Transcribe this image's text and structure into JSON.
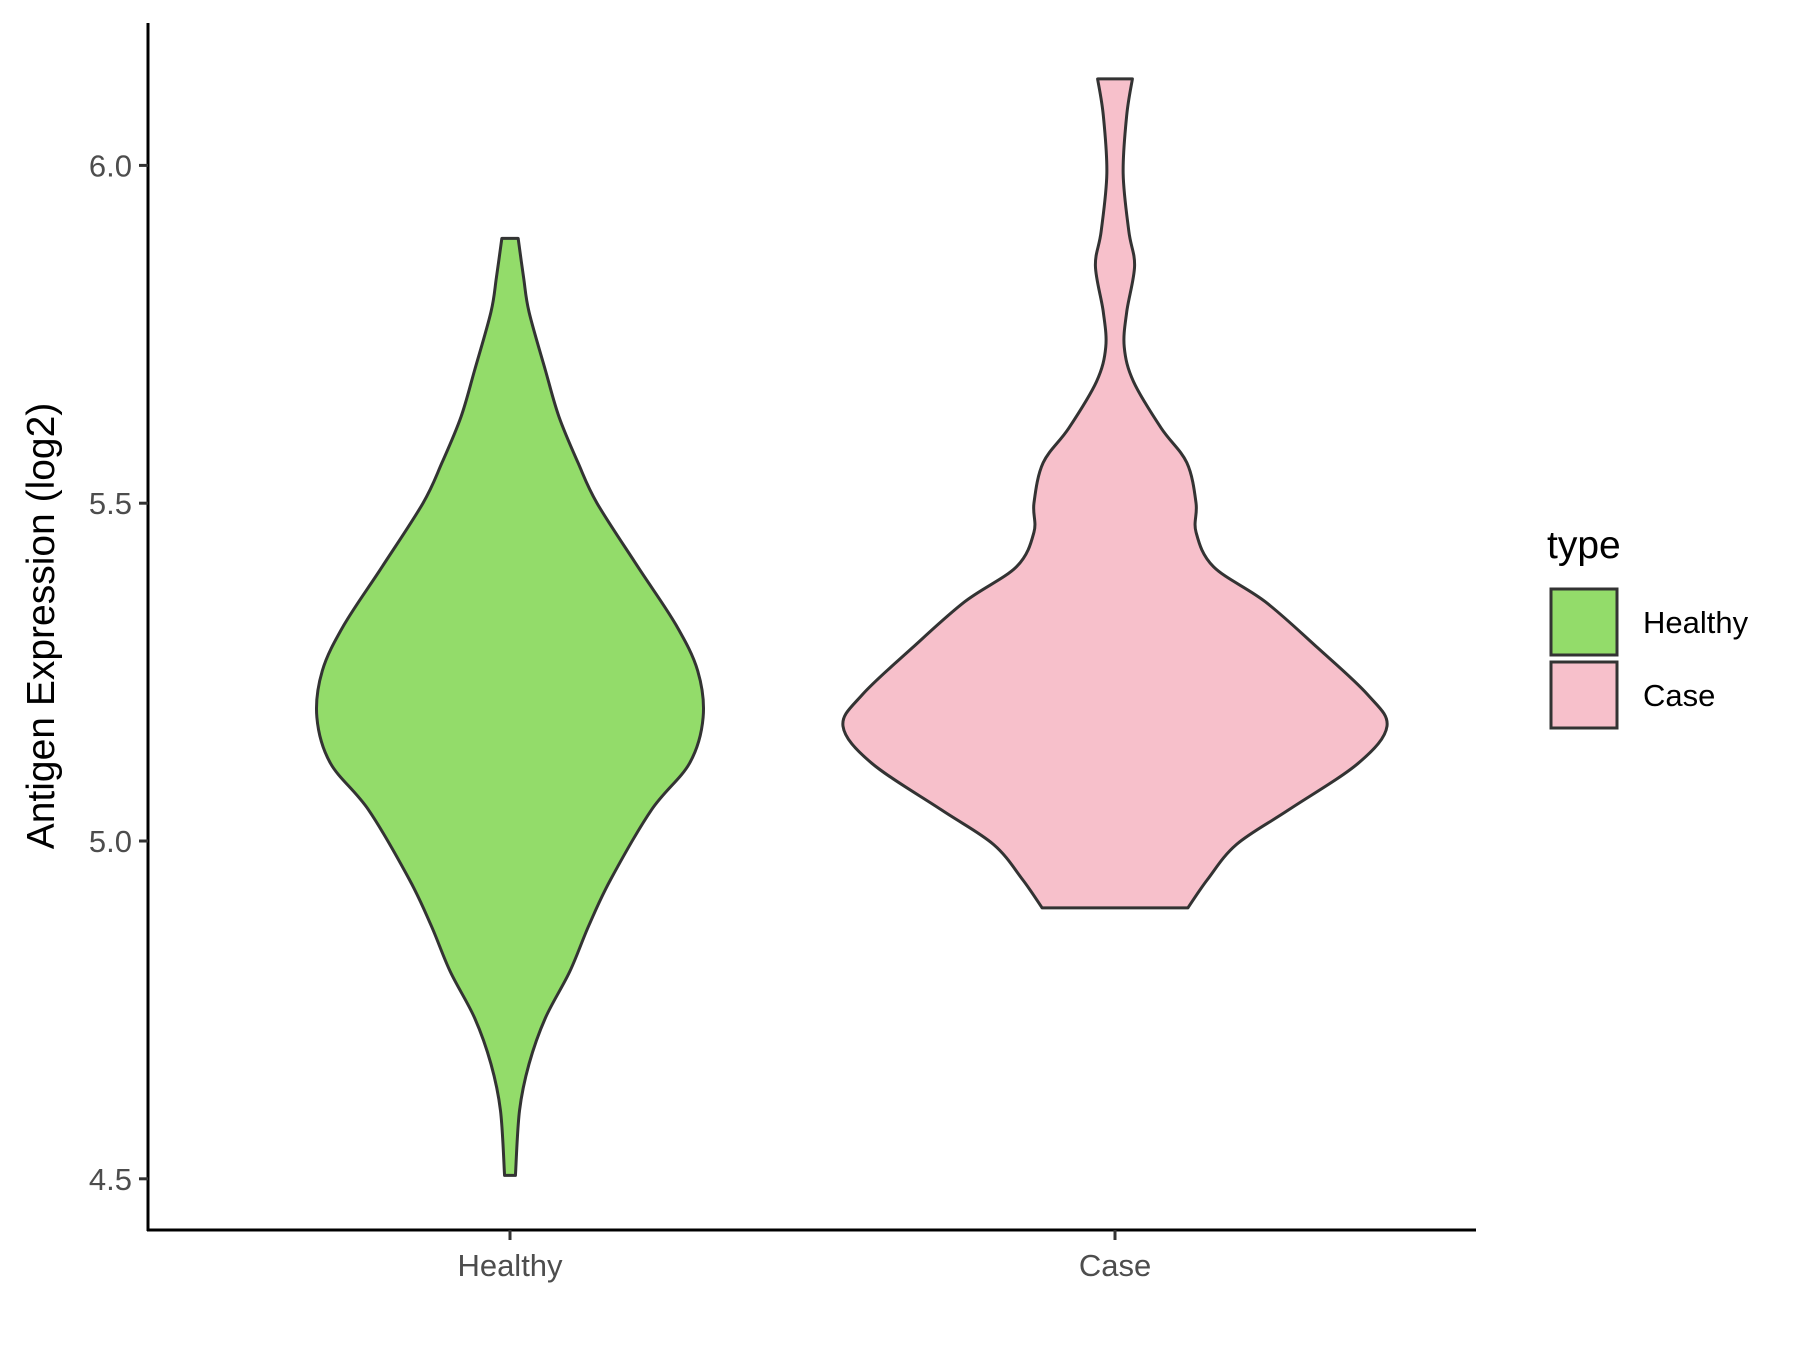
{
  "chart_data": {
    "type": "violin",
    "title": "",
    "xlabel": "",
    "ylabel": "Antigen Expression (log2)",
    "ylim": [
      4.43,
      6.2
    ],
    "yticks": [
      4.5,
      5.0,
      5.5,
      6.0
    ],
    "ytick_labels": [
      "4.5",
      "5.0",
      "5.5",
      "6.0"
    ],
    "categories": [
      "Healthy",
      "Case"
    ],
    "grid": false,
    "legend": {
      "title": "type",
      "placement": "right",
      "entries": [
        "Healthy",
        "Case"
      ]
    },
    "series": [
      {
        "name": "Healthy",
        "color": "#93DC6A",
        "min": 4.505,
        "max": 5.892,
        "density_profile": [
          [
            5.892,
            0.03
          ],
          [
            5.834,
            0.05
          ],
          [
            5.783,
            0.07
          ],
          [
            5.697,
            0.13
          ],
          [
            5.628,
            0.18
          ],
          [
            5.56,
            0.25
          ],
          [
            5.5,
            0.32
          ],
          [
            5.406,
            0.47
          ],
          [
            5.32,
            0.61
          ],
          [
            5.252,
            0.69
          ],
          [
            5.183,
            0.71
          ],
          [
            5.115,
            0.66
          ],
          [
            5.046,
            0.52
          ],
          [
            4.943,
            0.37
          ],
          [
            4.875,
            0.29
          ],
          [
            4.807,
            0.22
          ],
          [
            4.738,
            0.13
          ],
          [
            4.67,
            0.07
          ],
          [
            4.601,
            0.035
          ],
          [
            4.505,
            0.02
          ]
        ]
      },
      {
        "name": "Case",
        "color": "#F7C0CB",
        "min": 4.901,
        "max": 6.128,
        "density_profile": [
          [
            6.128,
            0.064
          ],
          [
            6.074,
            0.043
          ],
          [
            5.988,
            0.03
          ],
          [
            5.902,
            0.051
          ],
          [
            5.851,
            0.072
          ],
          [
            5.783,
            0.043
          ],
          [
            5.731,
            0.034
          ],
          [
            5.68,
            0.068
          ],
          [
            5.611,
            0.17
          ],
          [
            5.56,
            0.264
          ],
          [
            5.5,
            0.298
          ],
          [
            5.457,
            0.298
          ],
          [
            5.406,
            0.362
          ],
          [
            5.354,
            0.553
          ],
          [
            5.286,
            0.745
          ],
          [
            5.217,
            0.928
          ],
          [
            5.17,
            1.0
          ],
          [
            5.115,
            0.894
          ],
          [
            5.046,
            0.638
          ],
          [
            4.995,
            0.447
          ],
          [
            4.943,
            0.34
          ],
          [
            4.901,
            0.268
          ]
        ]
      }
    ]
  }
}
